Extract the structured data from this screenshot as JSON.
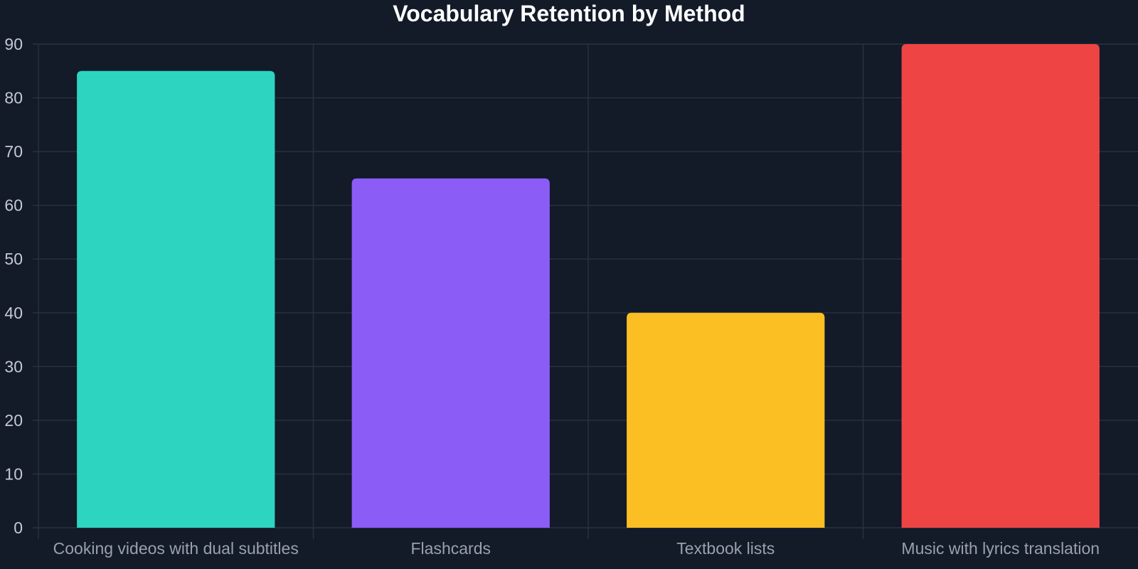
{
  "colors": {
    "background": "#131a28",
    "grid": "#2a3242",
    "title": "#ffffff",
    "tick_label": "#c4c9d4",
    "category_label": "#9aa1ad"
  },
  "chart_data": {
    "type": "bar",
    "title": "Vocabulary Retention by Method",
    "xlabel": "",
    "ylabel": "",
    "categories": [
      "Cooking videos with dual subtitles",
      "Flashcards",
      "Textbook lists",
      "Music with lyrics translation"
    ],
    "values": [
      85,
      65,
      40,
      90
    ],
    "bar_colors": [
      "#2dd4bf",
      "#8b5cf6",
      "#fbbf24",
      "#ef4444"
    ],
    "ylim": [
      0,
      90
    ],
    "yticks": [
      0,
      10,
      20,
      30,
      40,
      50,
      60,
      70,
      80,
      90
    ],
    "grid": true,
    "legend": "none"
  }
}
